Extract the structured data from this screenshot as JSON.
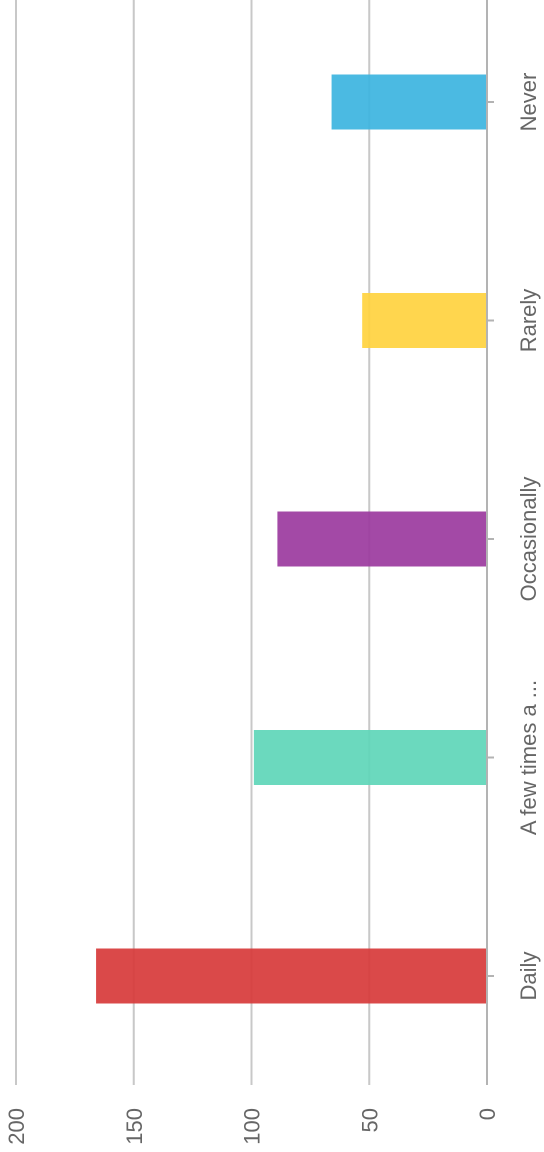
{
  "chart_data": {
    "type": "bar",
    "orientation": "rotated",
    "categories": [
      "Daily",
      "A few times a ...",
      "Occasionally",
      "Rarely",
      "Never"
    ],
    "values": [
      166,
      99,
      89,
      53,
      66
    ],
    "colors": [
      "#D73A3A",
      "#5ED6B8",
      "#9B3A9E",
      "#FFD23F",
      "#3CB4E0"
    ],
    "ylim": [
      0,
      200
    ],
    "yticks": [
      0,
      50,
      100,
      150,
      200
    ],
    "grid": true
  }
}
